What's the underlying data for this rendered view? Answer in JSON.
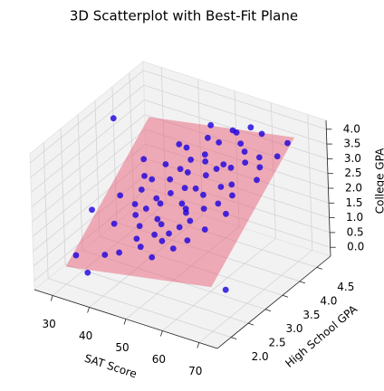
{
  "chart_data": {
    "type": "scatter3d",
    "title": "3D Scatterplot with Best-Fit Plane",
    "x_label": "SAT Score",
    "y_label": "High School GPA",
    "z_label": "College GPA",
    "xlim": [
      25,
      75
    ],
    "ylim": [
      1.6,
      4.9
    ],
    "zlim": [
      -0.3,
      4.3
    ],
    "xticks": [
      30,
      40,
      50,
      60,
      70
    ],
    "yticks": [
      {
        "value": 2.0,
        "label": "2.0"
      },
      2.5,
      {
        "value": 3.0,
        "label": "3.0"
      },
      3.5,
      {
        "value": 4.0,
        "label": "4.0"
      },
      4.5
    ],
    "zticks": [
      {
        "value": 0.0,
        "label": "0.0"
      },
      0.5,
      {
        "value": 1.0,
        "label": "1.0"
      },
      1.5,
      {
        "value": 2.0,
        "label": "2.0"
      },
      2.5,
      {
        "value": 3.0,
        "label": "3.0"
      },
      3.5,
      {
        "value": 4.0,
        "label": "4.0"
      }
    ],
    "grid": true,
    "plane": {
      "color": "#e8627a",
      "x": [
        30,
        70,
        70,
        30
      ],
      "y": [
        2.0,
        2.0,
        4.5,
        4.5
      ],
      "z": [
        0.3,
        1.2,
        3.9,
        3.0
      ]
    },
    "series": [
      {
        "color": "#1a00e0",
        "x": [
          45,
          52,
          48,
          55,
          40,
          60,
          50,
          43,
          58,
          47,
          53,
          38,
          62,
          49,
          56,
          44,
          51,
          35,
          65,
          57,
          46,
          54,
          41,
          59,
          48,
          37,
          63,
          50,
          42,
          55,
          67,
          39,
          52,
          45,
          60,
          33,
          49,
          56,
          44,
          61,
          47,
          53,
          36,
          58,
          50,
          28,
          70,
          43,
          54,
          40,
          64,
          48,
          57,
          46,
          51,
          34,
          62,
          55,
          42,
          59,
          30,
          66,
          47,
          52,
          38,
          60,
          45,
          53,
          69,
          41,
          27,
          72,
          35
        ],
        "y": [
          3.2,
          3.5,
          2.9,
          3.8,
          3.0,
          4.1,
          3.3,
          2.7,
          3.6,
          3.9,
          3.1,
          3.4,
          3.9,
          2.5,
          4.3,
          3.6,
          2.8,
          2.9,
          4.0,
          3.2,
          3.4,
          2.6,
          3.8,
          4.4,
          3.7,
          2.4,
          3.4,
          4.0,
          3.1,
          3.0,
          3.7,
          3.6,
          4.2,
          2.6,
          2.9,
          3.3,
          3.5,
          3.9,
          4.1,
          3.6,
          2.8,
          3.7,
          3.7,
          4.2,
          2.7,
          3.0,
          4.3,
          3.3,
          4.4,
          2.5,
          3.1,
          4.3,
          2.7,
          3.0,
          3.9,
          3.9,
          4.4,
          3.4,
          2.9,
          3.8,
          2.3,
          3.9,
          4.5,
          3.2,
          3.2,
          3.3,
          3.8,
          2.9,
          4.1,
          4.2,
          3.8,
          2.2,
          2.1
        ],
        "z": [
          1.9,
          2.4,
          1.6,
          2.9,
          1.5,
          3.4,
          2.0,
          1.1,
          2.6,
          2.8,
          2.0,
          1.9,
          3.3,
          0.9,
          3.7,
          2.3,
          1.5,
          1.1,
          3.5,
          2.2,
          2.1,
          1.3,
          2.5,
          3.9,
          2.6,
          0.6,
          2.7,
          3.0,
          1.7,
          1.9,
          3.1,
          2.1,
          3.3,
          1.0,
          1.9,
          1.6,
          2.3,
          3.0,
          2.9,
          2.8,
          1.3,
          2.7,
          2.0,
          3.5,
          1.3,
          1.2,
          3.9,
          1.9,
          3.6,
          0.7,
          2.4,
          3.2,
          1.6,
          1.6,
          2.9,
          2.3,
          3.8,
          2.4,
          1.3,
          3.1,
          0.4,
          3.3,
          3.4,
          2.0,
          1.6,
          2.4,
          2.5,
          1.7,
          3.6,
          2.8,
          3.5,
          1.0,
          0.2
        ]
      }
    ]
  }
}
